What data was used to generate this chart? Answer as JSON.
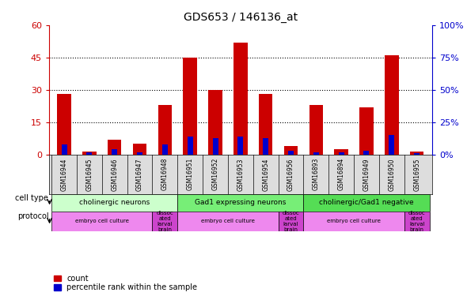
{
  "title": "GDS653 / 146136_at",
  "samples": [
    "GSM16944",
    "GSM16945",
    "GSM16946",
    "GSM16947",
    "GSM16948",
    "GSM16951",
    "GSM16952",
    "GSM16953",
    "GSM16954",
    "GSM16956",
    "GSM16893",
    "GSM16894",
    "GSM16949",
    "GSM16950",
    "GSM16955"
  ],
  "count_values": [
    28,
    1.5,
    7,
    5,
    23,
    45,
    30,
    52,
    28,
    4,
    23,
    2.5,
    22,
    46,
    1.5
  ],
  "percentile_values": [
    8,
    2,
    4,
    2,
    8,
    14,
    13,
    14,
    13,
    3,
    2,
    2,
    3,
    15,
    1
  ],
  "ylim_left": [
    0,
    60
  ],
  "ylim_right": [
    0,
    100
  ],
  "yticks_left": [
    0,
    15,
    30,
    45,
    60
  ],
  "yticks_right": [
    0,
    25,
    50,
    75,
    100
  ],
  "ytick_labels_left": [
    "0",
    "15",
    "30",
    "45",
    "60"
  ],
  "ytick_labels_right": [
    "0%",
    "25%",
    "50%",
    "75%",
    "100%"
  ],
  "bar_color_red": "#cc0000",
  "bar_color_blue": "#0000cc",
  "cell_type_groups": [
    {
      "label": "cholinergic neurons",
      "start": 0,
      "end": 5,
      "color": "#ccffcc"
    },
    {
      "label": "Gad1 expressing neurons",
      "start": 5,
      "end": 10,
      "color": "#77ee77"
    },
    {
      "label": "cholinergic/Gad1 negative",
      "start": 10,
      "end": 15,
      "color": "#55dd55"
    }
  ],
  "protocol_groups": [
    {
      "label": "embryo cell culture",
      "start": 0,
      "end": 4,
      "color": "#ee88ee"
    },
    {
      "label": "dissoc\nated\nlarval\nbrain",
      "start": 4,
      "end": 5,
      "color": "#cc44cc"
    },
    {
      "label": "embryo cell culture",
      "start": 5,
      "end": 9,
      "color": "#ee88ee"
    },
    {
      "label": "dissoc\nated\nlarval\nbrain",
      "start": 9,
      "end": 10,
      "color": "#cc44cc"
    },
    {
      "label": "embryo cell culture",
      "start": 10,
      "end": 14,
      "color": "#ee88ee"
    },
    {
      "label": "dissoc\nated\nlarval\nbrain",
      "start": 14,
      "end": 15,
      "color": "#cc44cc"
    }
  ],
  "cell_type_label": "cell type",
  "protocol_label": "protocol",
  "legend_count_label": "count",
  "legend_percentile_label": "percentile rank within the sample",
  "axis_left_color": "#cc0000",
  "axis_right_color": "#0000cc",
  "bar_width": 0.55,
  "blue_bar_width": 0.22,
  "fig_width": 5.9,
  "fig_height": 3.75,
  "xtick_bg_color": "#dddddd"
}
